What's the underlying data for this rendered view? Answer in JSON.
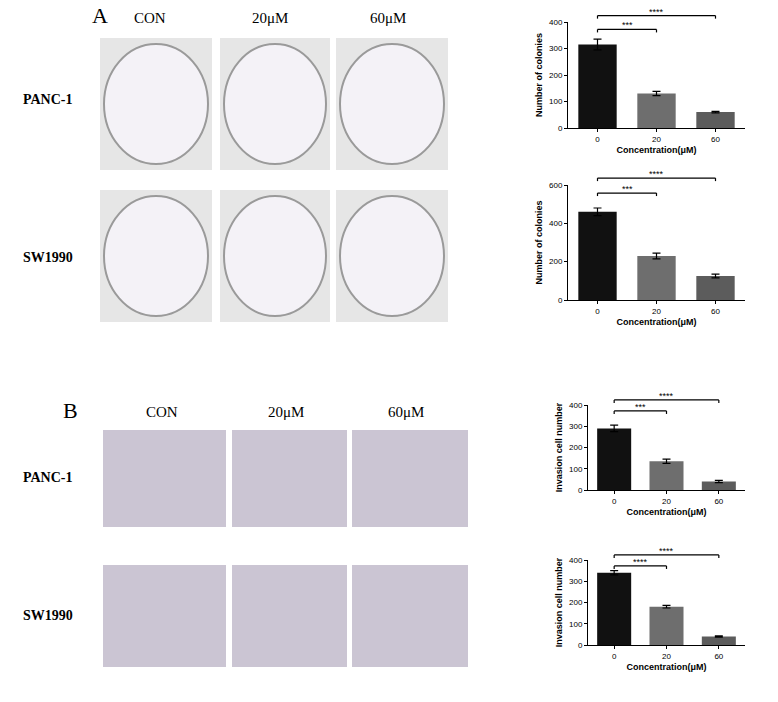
{
  "figure": {
    "panels": [
      {
        "label": "A",
        "columns": [
          "CON",
          "20μM",
          "60μM"
        ],
        "rows": [
          "PANC-1",
          "SW1990"
        ]
      },
      {
        "label": "B",
        "columns": [
          "CON",
          "20μM",
          "60μM"
        ],
        "rows": [
          "PANC-1",
          "SW1990"
        ]
      }
    ]
  },
  "chart_data": [
    {
      "type": "bar",
      "categories": [
        "0",
        "20",
        "60"
      ],
      "values": [
        315,
        130,
        60
      ],
      "errors": [
        20,
        8,
        3
      ],
      "colors": [
        "#111111",
        "#6e6e6e",
        "#5c5c5c"
      ],
      "xlabel": "Concentration(μM)",
      "ylabel": "Number of colonies",
      "ylim": [
        0,
        400
      ],
      "yticks": [
        0,
        100,
        200,
        300,
        400
      ],
      "comparisons": [
        {
          "categories": [
            "0",
            "20"
          ],
          "label": "***"
        },
        {
          "categories": [
            "0",
            "60"
          ],
          "label": "****"
        }
      ]
    },
    {
      "type": "bar",
      "categories": [
        "0",
        "20",
        "60"
      ],
      "values": [
        460,
        230,
        125
      ],
      "errors": [
        20,
        15,
        10
      ],
      "colors": [
        "#111111",
        "#6e6e6e",
        "#5c5c5c"
      ],
      "xlabel": "Concentration(μM)",
      "ylabel": "Number of colonies",
      "ylim": [
        0,
        600
      ],
      "yticks": [
        0,
        200,
        400,
        600
      ],
      "comparisons": [
        {
          "categories": [
            "0",
            "20"
          ],
          "label": "***"
        },
        {
          "categories": [
            "0",
            "60"
          ],
          "label": "****"
        }
      ]
    },
    {
      "type": "bar",
      "categories": [
        "0",
        "20",
        "60"
      ],
      "values": [
        290,
        135,
        40
      ],
      "errors": [
        15,
        10,
        5
      ],
      "colors": [
        "#111111",
        "#6e6e6e",
        "#5c5c5c"
      ],
      "xlabel": "Concentration(μM)",
      "ylabel": "Invasion cell number",
      "ylim": [
        0,
        400
      ],
      "yticks": [
        0,
        100,
        200,
        300,
        400
      ],
      "comparisons": [
        {
          "categories": [
            "0",
            "20"
          ],
          "label": "***"
        },
        {
          "categories": [
            "0",
            "60"
          ],
          "label": "****"
        }
      ]
    },
    {
      "type": "bar",
      "categories": [
        "0",
        "20",
        "60"
      ],
      "values": [
        340,
        180,
        40
      ],
      "errors": [
        10,
        6,
        3
      ],
      "colors": [
        "#111111",
        "#6e6e6e",
        "#5c5c5c"
      ],
      "xlabel": "Concentration(μM)",
      "ylabel": "Invasion cell number",
      "ylim": [
        0,
        400
      ],
      "yticks": [
        0,
        100,
        200,
        300,
        400
      ],
      "comparisons": [
        {
          "categories": [
            "0",
            "20"
          ],
          "label": "****"
        },
        {
          "categories": [
            "0",
            "60"
          ],
          "label": "****"
        }
      ]
    }
  ]
}
